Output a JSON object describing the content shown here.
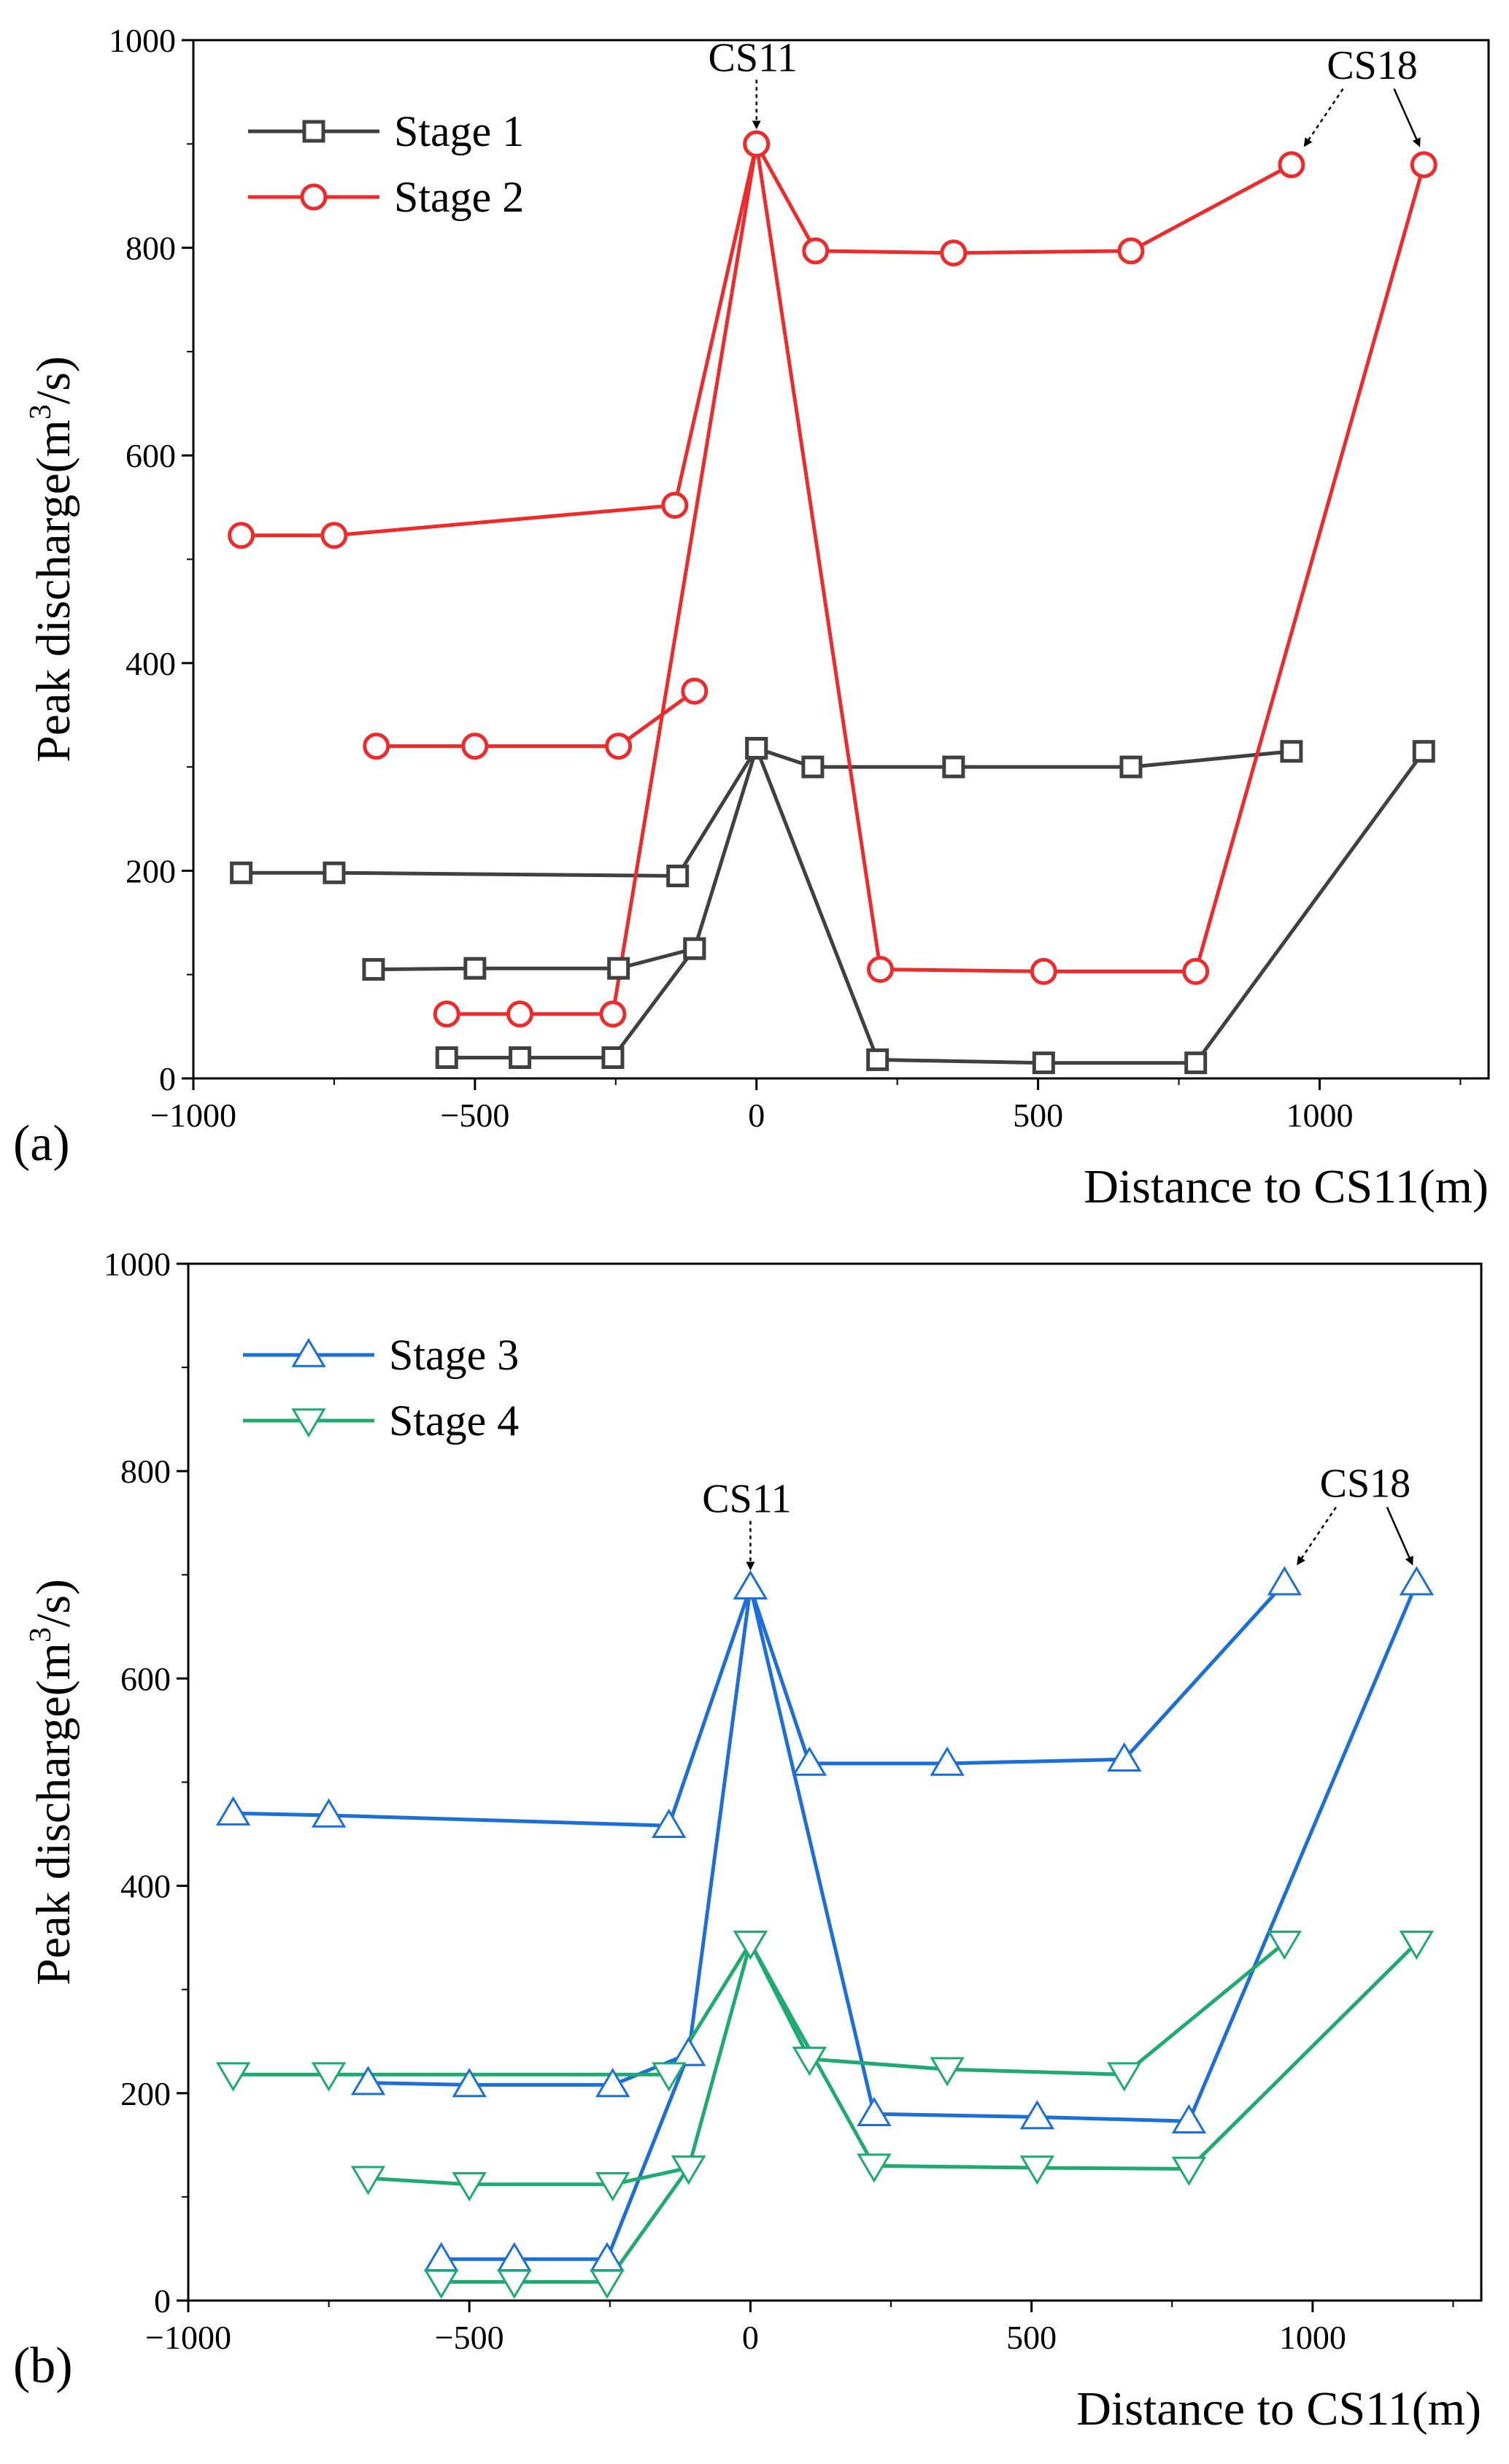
{
  "figure": {
    "panels": [
      "(a)",
      "(b)"
    ]
  },
  "chart_data": [
    {
      "type": "line",
      "panel_label": "(a)",
      "title": "",
      "xlabel": "Distance to CS11(m)",
      "ylabel": "Peak discharge(m³/s)",
      "xlim": [
        -1000,
        1300
      ],
      "ylim": [
        0,
        1000
      ],
      "xticks": [
        -1000,
        -500,
        0,
        500,
        1000
      ],
      "yticks": [
        0,
        200,
        400,
        600,
        800,
        1000
      ],
      "grid": false,
      "legend_position": "top-left",
      "annotations": [
        {
          "text": "CS11",
          "target_x": 0,
          "target_y": 900
        },
        {
          "text": "CS18",
          "targets": [
            [
              950,
              880
            ],
            [
              1185,
              880
            ]
          ]
        }
      ],
      "series": [
        {
          "name": "Stage 1",
          "color": "#404040",
          "marker": "square",
          "segments": [
            [
              [
                -915,
                198
              ],
              [
                -750,
                198
              ],
              [
                -140,
                195
              ],
              [
                0,
                318
              ],
              [
                100,
                300
              ],
              [
                350,
                300
              ],
              [
                665,
                300
              ],
              [
                950,
                315
              ]
            ],
            [
              [
                -680,
                105
              ],
              [
                -500,
                106
              ],
              [
                -245,
                106
              ],
              [
                -110,
                125
              ],
              [
                0,
                318
              ],
              [
                215,
                18
              ],
              [
                510,
                15
              ],
              [
                780,
                15
              ],
              [
                1185,
                315
              ]
            ],
            [
              [
                -550,
                20
              ],
              [
                -420,
                20
              ],
              [
                -255,
                20
              ],
              [
                -110,
                125
              ]
            ]
          ]
        },
        {
          "name": "Stage 2",
          "color": "#ee2a2a",
          "marker": "circle",
          "segments": [
            [
              [
                -915,
                523
              ],
              [
                -750,
                523
              ],
              [
                -145,
                552
              ],
              [
                0,
                900
              ],
              [
                105,
                797
              ],
              [
                350,
                795
              ],
              [
                665,
                797
              ],
              [
                950,
                880
              ]
            ],
            [
              [
                -675,
                320
              ],
              [
                -500,
                320
              ],
              [
                -245,
                320
              ],
              [
                -110,
                373
              ]
            ],
            [
              [
                -550,
                62
              ],
              [
                -420,
                62
              ],
              [
                -255,
                62
              ],
              [
                0,
                900
              ],
              [
                220,
                105
              ],
              [
                510,
                103
              ],
              [
                780,
                103
              ],
              [
                1185,
                880
              ]
            ]
          ]
        }
      ]
    },
    {
      "type": "line",
      "panel_label": "(b)",
      "title": "",
      "xlabel": "Distance to CS11(m)",
      "ylabel": "Peak discharge(m³/s)",
      "xlim": [
        -1000,
        1300
      ],
      "ylim": [
        0,
        1000
      ],
      "xticks": [
        -1000,
        -500,
        0,
        500,
        1000
      ],
      "yticks": [
        0,
        200,
        400,
        600,
        800,
        1000
      ],
      "grid": false,
      "legend_position": "top-left",
      "annotations": [
        {
          "text": "CS11",
          "target_x": 0,
          "target_y": 690
        },
        {
          "text": "CS18",
          "targets": [
            [
              950,
              692
            ],
            [
              1185,
              692
            ]
          ]
        }
      ],
      "series": [
        {
          "name": "Stage 3",
          "color": "#1c6fd8",
          "marker": "triangle-up",
          "segments": [
            [
              [
                -920,
                470
              ],
              [
                -750,
                468
              ],
              [
                -145,
                458
              ],
              [
                0,
                688
              ],
              [
                105,
                518
              ],
              [
                350,
                518
              ],
              [
                665,
                522
              ],
              [
                950,
                692
              ]
            ],
            [
              [
                -680,
                210
              ],
              [
                -500,
                208
              ],
              [
                -245,
                208
              ],
              [
                -110,
                238
              ],
              [
                0,
                688
              ],
              [
                220,
                180
              ],
              [
                510,
                177
              ],
              [
                780,
                173
              ],
              [
                1185,
                692
              ]
            ],
            [
              [
                -550,
                40
              ],
              [
                -420,
                40
              ],
              [
                -255,
                40
              ],
              [
                -110,
                238
              ]
            ]
          ]
        },
        {
          "name": "Stage 4",
          "color": "#1faa72",
          "marker": "triangle-down",
          "segments": [
            [
              [
                -920,
                218
              ],
              [
                -750,
                218
              ],
              [
                -145,
                218
              ],
              [
                0,
                345
              ],
              [
                105,
                233
              ],
              [
                350,
                223
              ],
              [
                665,
                218
              ],
              [
                950,
                345
              ]
            ],
            [
              [
                -680,
                118
              ],
              [
                -500,
                112
              ],
              [
                -245,
                112
              ],
              [
                -110,
                128
              ],
              [
                0,
                345
              ],
              [
                220,
                130
              ],
              [
                510,
                128
              ],
              [
                780,
                127
              ],
              [
                1185,
                345
              ]
            ],
            [
              [
                -550,
                18
              ],
              [
                -420,
                18
              ],
              [
                -255,
                18
              ],
              [
                -110,
                128
              ]
            ]
          ]
        }
      ]
    }
  ]
}
